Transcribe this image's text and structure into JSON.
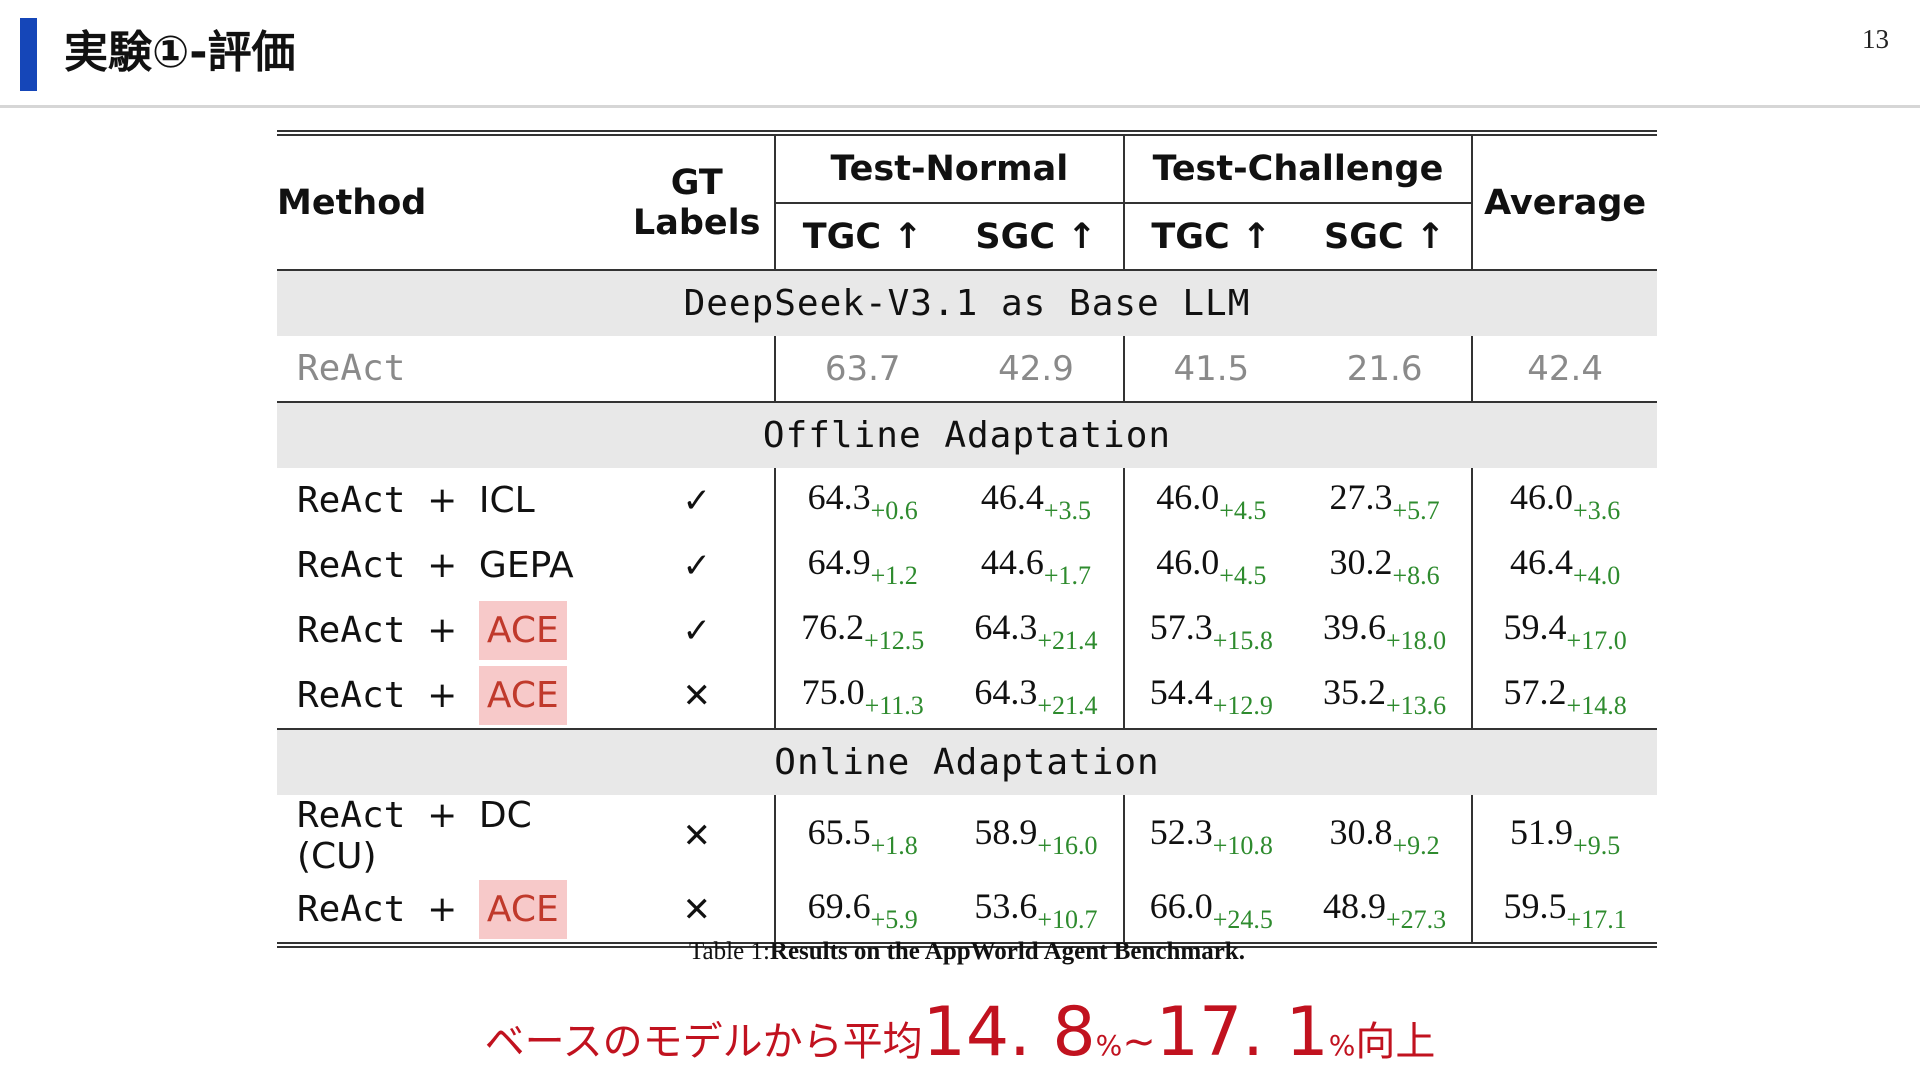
{
  "slide": {
    "title": "実験①-評価",
    "page_number": "13",
    "accent_color": "#1546b8"
  },
  "table": {
    "headers": {
      "method": "Method",
      "gt_labels": "GT Labels",
      "test_normal": "Test-Normal",
      "test_challenge": "Test-Challenge",
      "average": "Average",
      "tgc": "TGC ↑",
      "sgc": "SGC ↑"
    },
    "groups": {
      "base": "DeepSeek-V3.1 as Base LLM",
      "offline": "Offline Adaptation",
      "online": "Online Adaptation"
    },
    "baseline": {
      "method": "ReAct",
      "values": [
        "63.7",
        "42.9",
        "41.5",
        "21.6",
        "42.4"
      ]
    },
    "offline_rows": [
      {
        "base": "ReAct",
        "plus": "+",
        "name": "ICL",
        "highlight": false,
        "gt": "✓",
        "values": [
          {
            "v": "64.3",
            "d": "+0.6"
          },
          {
            "v": "46.4",
            "d": "+3.5"
          },
          {
            "v": "46.0",
            "d": "+4.5"
          },
          {
            "v": "27.3",
            "d": "+5.7"
          },
          {
            "v": "46.0",
            "d": "+3.6"
          }
        ]
      },
      {
        "base": "ReAct",
        "plus": "+",
        "name": "GEPA",
        "highlight": false,
        "gt": "✓",
        "values": [
          {
            "v": "64.9",
            "d": "+1.2"
          },
          {
            "v": "44.6",
            "d": "+1.7"
          },
          {
            "v": "46.0",
            "d": "+4.5"
          },
          {
            "v": "30.2",
            "d": "+8.6"
          },
          {
            "v": "46.4",
            "d": "+4.0"
          }
        ]
      },
      {
        "base": "ReAct",
        "plus": "+",
        "name": "ACE",
        "highlight": true,
        "gt": "✓",
        "values": [
          {
            "v": "76.2",
            "d": "+12.5"
          },
          {
            "v": "64.3",
            "d": "+21.4"
          },
          {
            "v": "57.3",
            "d": "+15.8"
          },
          {
            "v": "39.6",
            "d": "+18.0"
          },
          {
            "v": "59.4",
            "d": "+17.0"
          }
        ]
      },
      {
        "base": "ReAct",
        "plus": "+",
        "name": "ACE",
        "highlight": true,
        "gt": "✕",
        "values": [
          {
            "v": "75.0",
            "d": "+11.3"
          },
          {
            "v": "64.3",
            "d": "+21.4"
          },
          {
            "v": "54.4",
            "d": "+12.9"
          },
          {
            "v": "35.2",
            "d": "+13.6"
          },
          {
            "v": "57.2",
            "d": "+14.8"
          }
        ]
      }
    ],
    "online_rows": [
      {
        "base": "ReAct",
        "plus": "+",
        "name": "DC (CU)",
        "highlight": false,
        "gt": "✕",
        "values": [
          {
            "v": "65.5",
            "d": "+1.8"
          },
          {
            "v": "58.9",
            "d": "+16.0"
          },
          {
            "v": "52.3",
            "d": "+10.8"
          },
          {
            "v": "30.8",
            "d": "+9.2"
          },
          {
            "v": "51.9",
            "d": "+9.5"
          }
        ]
      },
      {
        "base": "ReAct",
        "plus": "+",
        "name": "ACE",
        "highlight": true,
        "gt": "✕",
        "values": [
          {
            "v": "69.6",
            "d": "+5.9"
          },
          {
            "v": "53.6",
            "d": "+10.7"
          },
          {
            "v": "66.0",
            "d": "+24.5"
          },
          {
            "v": "48.9",
            "d": "+27.3"
          },
          {
            "v": "59.5",
            "d": "+17.1"
          }
        ]
      }
    ],
    "delta_color": "#2e8b2e",
    "highlight_color": "#f7c9c9"
  },
  "caption": {
    "prefix": "Table 1:",
    "text": "Results on the AppWorld Agent Benchmark."
  },
  "takeaway": {
    "lead": "ベースのモデルから平均",
    "value1": "14. 8",
    "pct1": "%",
    "tilde": "~",
    "value2": "17. 1",
    "pct2": "%",
    "tail": "向上",
    "color": "#c1121f"
  }
}
